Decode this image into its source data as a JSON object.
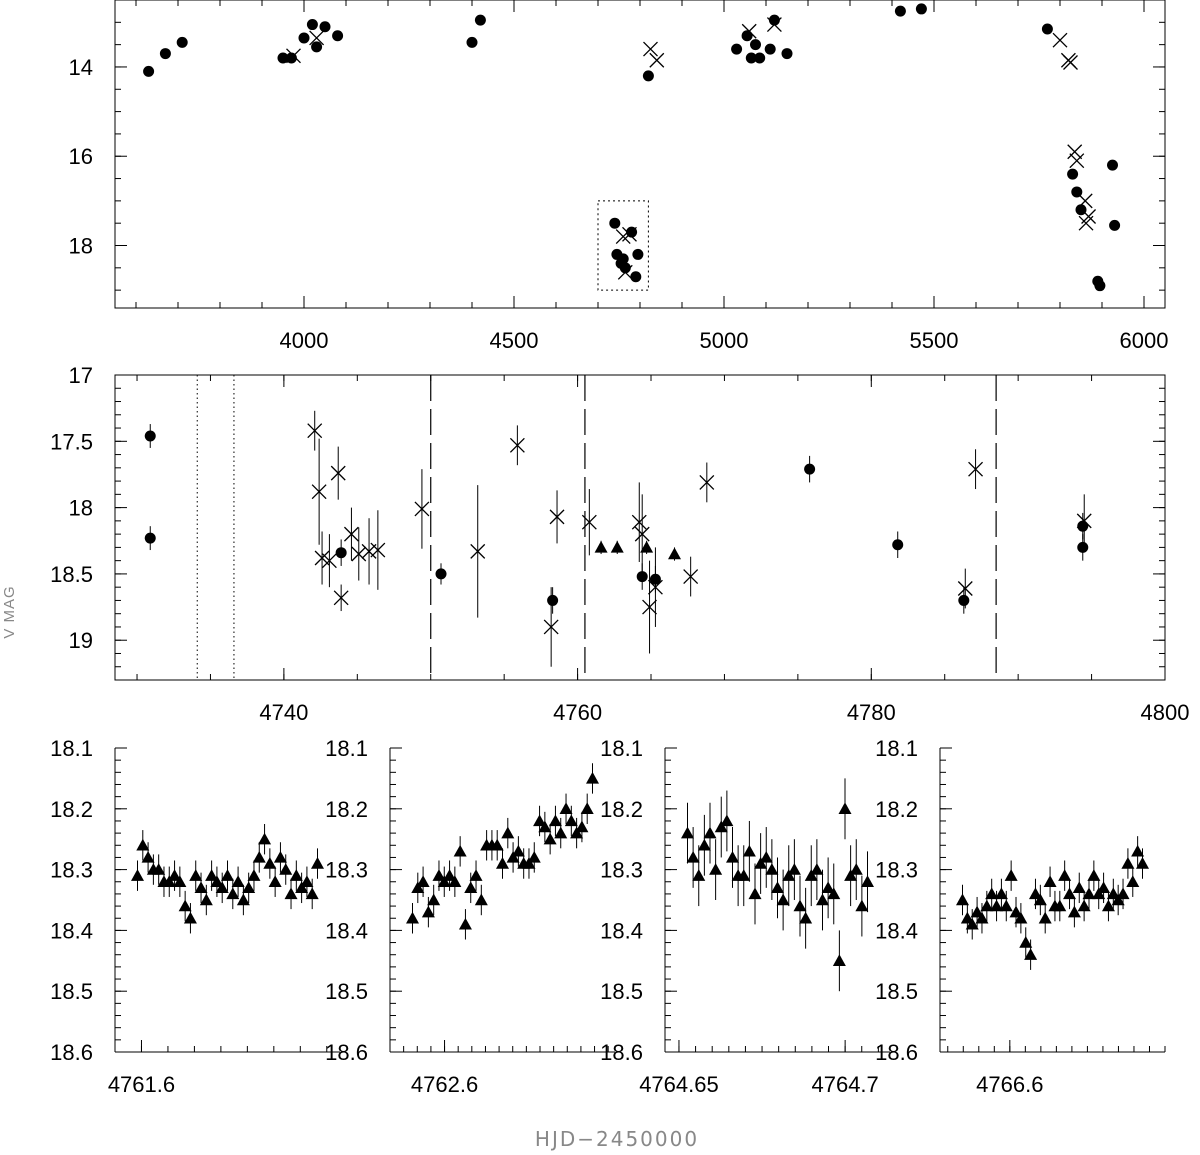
{
  "xlabel": "HJD−2450000",
  "ylabel": "V MAG",
  "chart_data": [
    {
      "type": "scatter",
      "panel": "full light curve",
      "xlim": [
        3550,
        6050
      ],
      "ylim": [
        12.5,
        19.4
      ],
      "y_inverted": true,
      "x_ticks": [
        4000,
        4500,
        5000,
        5500,
        6000
      ],
      "y_ticks": [
        14,
        16,
        18
      ],
      "zoom_box": {
        "x": [
          4700,
          4820
        ],
        "y": [
          17.0,
          19.0
        ]
      },
      "series": [
        {
          "marker": "circle",
          "points": [
            [
              3630,
              14.1
            ],
            [
              3670,
              13.7
            ],
            [
              3710,
              13.45
            ],
            [
              3950,
              13.8
            ],
            [
              3970,
              13.8
            ],
            [
              4000,
              13.35
            ],
            [
              4020,
              13.05
            ],
            [
              4030,
              13.55
            ],
            [
              4050,
              13.1
            ],
            [
              4080,
              13.3
            ],
            [
              4400,
              13.45
            ],
            [
              4420,
              12.95
            ],
            [
              4740,
              17.5
            ],
            [
              4745,
              18.2
            ],
            [
              4755,
              18.4
            ],
            [
              4760,
              18.3
            ],
            [
              4765,
              18.5
            ],
            [
              4780,
              17.7
            ],
            [
              4790,
              18.7
            ],
            [
              4795,
              18.2
            ],
            [
              4820,
              14.2
            ],
            [
              5030,
              13.6
            ],
            [
              5055,
              13.3
            ],
            [
              5065,
              13.8
            ],
            [
              5075,
              13.5
            ],
            [
              5085,
              13.8
            ],
            [
              5110,
              13.6
            ],
            [
              5120,
              12.95
            ],
            [
              5150,
              13.7
            ],
            [
              5420,
              12.75
            ],
            [
              5470,
              12.7
            ],
            [
              5770,
              13.15
            ],
            [
              5830,
              16.4
            ],
            [
              5840,
              16.8
            ],
            [
              5850,
              17.2
            ],
            [
              5890,
              18.8
            ],
            [
              5895,
              18.9
            ],
            [
              5925,
              16.2
            ],
            [
              5930,
              17.55
            ]
          ]
        },
        {
          "marker": "cross",
          "points": [
            [
              3975,
              13.75
            ],
            [
              4030,
              13.35
            ],
            [
              4760,
              17.8
            ],
            [
              4765,
              18.6
            ],
            [
              4775,
              17.75
            ],
            [
              4825,
              13.6
            ],
            [
              4840,
              13.85
            ],
            [
              5060,
              13.2
            ],
            [
              5120,
              13.05
            ],
            [
              5800,
              13.4
            ],
            [
              5820,
              13.85
            ],
            [
              5825,
              13.9
            ],
            [
              5835,
              15.9
            ],
            [
              5840,
              16.1
            ],
            [
              5860,
              17.0
            ],
            [
              5862,
              17.5
            ],
            [
              5868,
              17.35
            ]
          ]
        }
      ]
    },
    {
      "type": "scatter",
      "panel": "zoom 4730-4800",
      "xlim": [
        4728.5,
        4800
      ],
      "ylim": [
        17.0,
        19.3
      ],
      "y_inverted": true,
      "x_ticks": [
        4740,
        4760,
        4780,
        4800
      ],
      "y_ticks": [
        17,
        17.5,
        18,
        18.5,
        19
      ],
      "vlines_dotted": [
        4734.1,
        4736.6
      ],
      "vlines_dashed": [
        4750.0,
        4760.5,
        4788.5
      ],
      "series": [
        {
          "marker": "circle",
          "points": [
            [
              4730.9,
              17.46,
              0.09
            ],
            [
              4730.9,
              18.23,
              0.09
            ],
            [
              4743.9,
              18.34,
              0.1
            ],
            [
              4750.7,
              18.5,
              0.08
            ],
            [
              4758.3,
              18.7,
              0.1
            ],
            [
              4764.4,
              18.52,
              0.1
            ],
            [
              4765.3,
              18.54,
              0.1
            ],
            [
              4775.8,
              17.71,
              0.1
            ],
            [
              4781.8,
              18.28,
              0.1
            ],
            [
              4786.3,
              18.7,
              0.1
            ],
            [
              4794.4,
              18.14,
              0.1
            ],
            [
              4794.4,
              18.3,
              0.1
            ]
          ]
        },
        {
          "marker": "cross",
          "points": [
            [
              4742.1,
              17.42,
              0.15
            ],
            [
              4742.4,
              17.88,
              0.4
            ],
            [
              4742.6,
              18.38,
              0.2
            ],
            [
              4743.1,
              18.4,
              0.2
            ],
            [
              4743.7,
              17.74,
              0.2
            ],
            [
              4743.9,
              18.68,
              0.1
            ],
            [
              4744.6,
              18.2,
              0.2
            ],
            [
              4745.1,
              18.35,
              0.2
            ],
            [
              4745.8,
              18.33,
              0.25
            ],
            [
              4746.4,
              18.32,
              0.3
            ],
            [
              4749.4,
              18.01,
              0.3
            ],
            [
              4753.2,
              18.33,
              0.5
            ],
            [
              4755.9,
              17.53,
              0.15
            ],
            [
              4758.2,
              18.9,
              0.3
            ],
            [
              4758.6,
              18.07,
              0.2
            ],
            [
              4760.8,
              18.11,
              0.25
            ],
            [
              4764.2,
              18.11,
              0.3
            ],
            [
              4764.4,
              18.2,
              0.3
            ],
            [
              4764.9,
              18.75,
              0.35
            ],
            [
              4765.3,
              18.6,
              0.3
            ],
            [
              4767.7,
              18.52,
              0.15
            ],
            [
              4768.8,
              17.81,
              0.15
            ],
            [
              4786.4,
              18.61,
              0.15
            ],
            [
              4787.1,
              17.71,
              0.15
            ],
            [
              4794.5,
              18.1,
              0.2
            ]
          ]
        },
        {
          "marker": "triangle",
          "points": [
            [
              4761.6,
              18.3,
              0.05
            ],
            [
              4762.7,
              18.3,
              0.05
            ],
            [
              4764.7,
              18.3,
              0.05
            ],
            [
              4766.6,
              18.35,
              0.05
            ]
          ]
        }
      ]
    },
    {
      "type": "scatter",
      "panel": "night 4761.6",
      "xlim": [
        4761.58,
        4761.75
      ],
      "ylim": [
        18.1,
        18.6
      ],
      "y_inverted": true,
      "x_ticks": [
        4761.6
      ],
      "y_ticks": [
        18.1,
        18.2,
        18.3,
        18.4,
        18.5,
        18.6
      ],
      "series": [
        {
          "marker": "triangle",
          "values": [
            18.31,
            18.26,
            18.28,
            18.3,
            18.3,
            18.32,
            18.32,
            18.31,
            18.32,
            18.36,
            18.38,
            18.31,
            18.33,
            18.35,
            18.31,
            18.32,
            18.33,
            18.31,
            18.34,
            18.32,
            18.35,
            18.33,
            18.31,
            18.28,
            18.25,
            18.29,
            18.32,
            18.28,
            18.3,
            18.34,
            18.31,
            18.33,
            18.32,
            18.34,
            18.29
          ]
        }
      ]
    },
    {
      "type": "scatter",
      "panel": "night 4762.6",
      "xlim": [
        4762.52,
        4762.85
      ],
      "ylim": [
        18.1,
        18.6
      ],
      "y_inverted": true,
      "x_ticks": [
        4762.6
      ],
      "y_ticks": [
        18.1,
        18.2,
        18.3,
        18.4,
        18.5,
        18.6
      ],
      "series": [
        {
          "marker": "triangle",
          "values": [
            18.38,
            18.33,
            18.32,
            18.37,
            18.35,
            18.31,
            18.32,
            18.31,
            18.32,
            18.27,
            18.39,
            18.33,
            18.31,
            18.35,
            18.26,
            18.26,
            18.26,
            18.29,
            18.24,
            18.28,
            18.27,
            18.29,
            18.29,
            18.28,
            18.22,
            18.23,
            18.25,
            18.22,
            18.24,
            18.2,
            18.22,
            18.24,
            18.23,
            18.2,
            18.15
          ]
        }
      ]
    },
    {
      "type": "scatter",
      "panel": "night 4764.65",
      "xlim": [
        4764.6458,
        4764.7135
      ],
      "ylim": [
        18.1,
        18.6
      ],
      "y_inverted": true,
      "x_ticks": [
        4764.65,
        4764.7
      ],
      "y_ticks": [
        18.1,
        18.2,
        18.3,
        18.4,
        18.5,
        18.6
      ],
      "series": [
        {
          "marker": "triangle",
          "values": [
            18.24,
            18.28,
            18.31,
            18.26,
            18.24,
            18.3,
            18.23,
            18.22,
            18.28,
            18.31,
            18.31,
            18.27,
            18.34,
            18.29,
            18.28,
            18.3,
            18.33,
            18.35,
            18.31,
            18.3,
            18.36,
            18.38,
            18.31,
            18.3,
            18.35,
            18.33,
            18.34,
            18.45,
            18.2,
            18.31,
            18.3,
            18.36,
            18.32
          ]
        }
      ]
    },
    {
      "type": "scatter",
      "panel": "night 4766.6",
      "xlim": [
        4766.51,
        4766.8
      ],
      "ylim": [
        18.1,
        18.6
      ],
      "y_inverted": true,
      "x_ticks": [
        4766.6
      ],
      "y_ticks": [
        18.1,
        18.2,
        18.3,
        18.4,
        18.5,
        18.6
      ],
      "series": [
        {
          "marker": "triangle",
          "values": [
            18.35,
            18.38,
            18.39,
            18.37,
            18.38,
            18.36,
            18.34,
            18.36,
            18.34,
            18.36,
            18.31,
            18.37,
            18.38,
            18.42,
            18.44,
            18.34,
            18.35,
            18.38,
            18.32,
            18.36,
            18.36,
            18.31,
            18.34,
            18.37,
            18.33,
            18.36,
            18.34,
            18.31,
            18.34,
            18.33,
            18.36,
            18.34,
            18.35,
            18.34,
            18.29,
            18.32,
            18.27,
            18.29
          ]
        }
      ]
    }
  ]
}
